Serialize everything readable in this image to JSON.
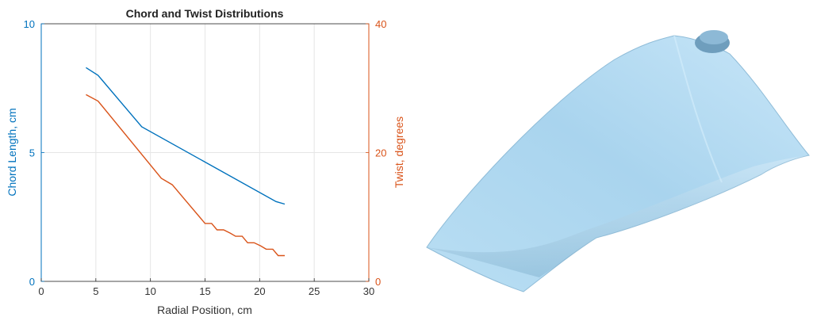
{
  "chart_data": {
    "type": "line",
    "title": "Chord and Twist Distributions",
    "xlabel": "Radial Position, cm",
    "xlim": [
      0,
      30
    ],
    "xticks": [
      0,
      5,
      10,
      15,
      20,
      25,
      30
    ],
    "grid": true,
    "left_axis": {
      "label": "Chord Length, cm",
      "ylim": [
        0,
        10
      ],
      "ticks": [
        0,
        5,
        10
      ],
      "color": "#0072BD"
    },
    "right_axis": {
      "label": "Twist, degrees",
      "ylim": [
        0,
        40
      ],
      "ticks": [
        0,
        20,
        40
      ],
      "color": "#D95319"
    },
    "series": [
      {
        "axis": "left",
        "color": "#0072BD",
        "x": [
          4.1,
          5.2,
          9.2,
          21.5,
          22.3
        ],
        "y": [
          8.3,
          8.0,
          6.0,
          3.1,
          3.0
        ]
      },
      {
        "axis": "right",
        "color": "#D95319",
        "x": [
          4.1,
          5.2,
          11.0,
          12.0,
          15.0,
          15.6,
          16.1,
          16.7,
          17.3,
          17.8,
          18.4,
          18.9,
          19.5,
          20.1,
          20.6,
          21.2,
          21.7,
          22.3
        ],
        "y": [
          29.0,
          28.0,
          16.0,
          15.0,
          9.0,
          9.0,
          8.0,
          8.0,
          7.5,
          7.0,
          7.0,
          6.0,
          6.0,
          5.5,
          5.0,
          5.0,
          4.0,
          4.0
        ]
      }
    ]
  },
  "illustration": {
    "blade_color": "#a9d4ee"
  }
}
